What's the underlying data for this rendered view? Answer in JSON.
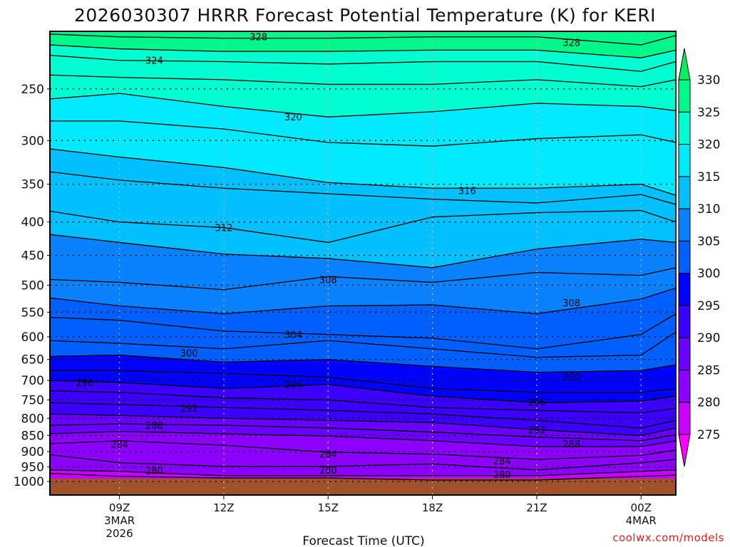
{
  "chart_data": {
    "type": "heatmap",
    "title": "2026030307 HRRR Forecast Potential Temperature (K) for KERI",
    "xlabel": "Forecast Time (UTC)",
    "ylabel": "",
    "credit": "coolwx.com/models",
    "x_unit": "hours since 2026-03-03 00Z",
    "xlim": [
      7,
      25
    ],
    "ylim_pressure_hPa": [
      1049,
      204
    ],
    "y_ticks": [
      250,
      300,
      350,
      400,
      450,
      500,
      550,
      600,
      650,
      700,
      750,
      800,
      850,
      900,
      950,
      1000
    ],
    "x_ticks": [
      {
        "t": 9,
        "label": "09Z",
        "sub1": "3MAR",
        "sub2": "2026"
      },
      {
        "t": 12,
        "label": "12Z"
      },
      {
        "t": 15,
        "label": "15Z"
      },
      {
        "t": 18,
        "label": "18Z"
      },
      {
        "t": 21,
        "label": "21Z"
      },
      {
        "t": 24,
        "label": "00Z",
        "sub1": "4MAR"
      }
    ],
    "surface_pressure_hPa": 990,
    "colors": {
      "ground": "#a0522d",
      "below_min": "#ff00ff",
      "above_max": "#00f060"
    },
    "colorbar": {
      "levels": [
        275,
        280,
        285,
        290,
        295,
        300,
        305,
        310,
        315,
        320,
        325,
        330
      ],
      "colors": [
        "#c800ff",
        "#8c00ff",
        "#6a00ff",
        "#3c00ff",
        "#0000ff",
        "#0060ff",
        "#0a82ff",
        "#00c0ff",
        "#00eaff",
        "#00ffd0",
        "#00f88a"
      ]
    },
    "contour_times": [
      7,
      9,
      12,
      15,
      18,
      21,
      24,
      25
    ],
    "contours": [
      {
        "level": 278,
        "p": [
          972,
          982,
          988,
          988,
          995,
          995,
          982,
          978
        ]
      },
      {
        "level": 280,
        "p": [
          960,
          965,
          980,
          980,
          980,
          980,
          965,
          960
        ]
      },
      {
        "level": 282,
        "p": [
          910,
          936,
          948,
          948,
          940,
          960,
          936,
          925
        ]
      },
      {
        "level": 284,
        "p": [
          875,
          866,
          880,
          902,
          908,
          925,
          912,
          895
        ]
      },
      {
        "level": 286,
        "p": [
          845,
          838,
          845,
          852,
          866,
          884,
          884,
          866
        ]
      },
      {
        "level": 288,
        "p": [
          820,
          816,
          820,
          828,
          840,
          855,
          866,
          848
        ]
      },
      {
        "level": 290,
        "p": [
          788,
          792,
          800,
          806,
          812,
          833,
          850,
          828
        ]
      },
      {
        "level": 292,
        "p": [
          757,
          762,
          770,
          778,
          788,
          806,
          828,
          806
        ]
      },
      {
        "level": 294,
        "p": [
          726,
          730,
          744,
          750,
          770,
          778,
          785,
          772
        ]
      },
      {
        "level": 296,
        "p": [
          700,
          705,
          720,
          710,
          740,
          757,
          753,
          740
        ]
      },
      {
        "level": 298,
        "p": [
          676,
          676,
          683,
          692,
          720,
          730,
          730,
          720
        ]
      },
      {
        "level": 300,
        "p": [
          643,
          640,
          656,
          650,
          666,
          680,
          676,
          662
        ]
      },
      {
        "level": 302,
        "p": [
          608,
          614,
          626,
          608,
          626,
          645,
          640,
          590
        ]
      },
      {
        "level": 304,
        "p": [
          560,
          566,
          588,
          595,
          603,
          626,
          595,
          553
        ]
      },
      {
        "level": 306,
        "p": [
          523,
          538,
          553,
          538,
          536,
          553,
          525,
          505
        ]
      },
      {
        "level": 308,
        "p": [
          490,
          495,
          508,
          485,
          495,
          478,
          483,
          470
        ]
      },
      {
        "level": 310,
        "p": [
          418,
          430,
          448,
          455,
          470,
          440,
          425,
          430
        ]
      },
      {
        "level": 312,
        "p": [
          385,
          400,
          408,
          430,
          393,
          387,
          384,
          400
        ]
      },
      {
        "level": 314,
        "p": [
          335,
          345,
          355,
          362,
          369,
          374,
          363,
          376
        ]
      },
      {
        "level": 316,
        "p": [
          309,
          318,
          330,
          348,
          355,
          355,
          350,
          364
        ]
      },
      {
        "level": 318,
        "p": [
          280,
          280,
          288,
          302,
          306,
          298,
          294,
          302
        ]
      },
      {
        "level": 320,
        "p": [
          259,
          254,
          266,
          276,
          271,
          263,
          266,
          270
        ]
      },
      {
        "level": 322,
        "p": [
          238,
          240,
          242,
          246,
          246,
          242,
          248,
          242
        ]
      },
      {
        "level": 324,
        "p": [
          222,
          226,
          227,
          229,
          227,
          227,
          235,
          227
        ]
      },
      {
        "level": 326,
        "p": [
          214,
          217,
          219,
          219,
          218,
          218,
          224,
          218
        ]
      },
      {
        "level": 328,
        "p": [
          206,
          208,
          209,
          209,
          208,
          208,
          214,
          207
        ]
      }
    ],
    "contour_labels": [
      {
        "text": "328",
        "t": 13,
        "p": 208
      },
      {
        "text": "328",
        "t": 22,
        "p": 212
      },
      {
        "text": "324",
        "t": 10,
        "p": 226
      },
      {
        "text": "320",
        "t": 14,
        "p": 276
      },
      {
        "text": "316",
        "t": 19,
        "p": 358
      },
      {
        "text": "312",
        "t": 12,
        "p": 408
      },
      {
        "text": "308",
        "t": 15,
        "p": 490
      },
      {
        "text": "308",
        "t": 22,
        "p": 532
      },
      {
        "text": "304",
        "t": 14,
        "p": 595
      },
      {
        "text": "300",
        "t": 11,
        "p": 635
      },
      {
        "text": "300",
        "t": 22,
        "p": 690
      },
      {
        "text": "296",
        "t": 8,
        "p": 705
      },
      {
        "text": "296",
        "t": 14,
        "p": 710
      },
      {
        "text": "296",
        "t": 21,
        "p": 755
      },
      {
        "text": "292",
        "t": 11,
        "p": 772
      },
      {
        "text": "292",
        "t": 21,
        "p": 833
      },
      {
        "text": "288",
        "t": 10,
        "p": 820
      },
      {
        "text": "288",
        "t": 22,
        "p": 875
      },
      {
        "text": "284",
        "t": 9,
        "p": 877
      },
      {
        "text": "284",
        "t": 15,
        "p": 908
      },
      {
        "text": "284",
        "t": 20,
        "p": 930
      },
      {
        "text": "280",
        "t": 10,
        "p": 962
      },
      {
        "text": "280",
        "t": 15,
        "p": 960
      },
      {
        "text": "280",
        "t": 20,
        "p": 975
      }
    ]
  }
}
